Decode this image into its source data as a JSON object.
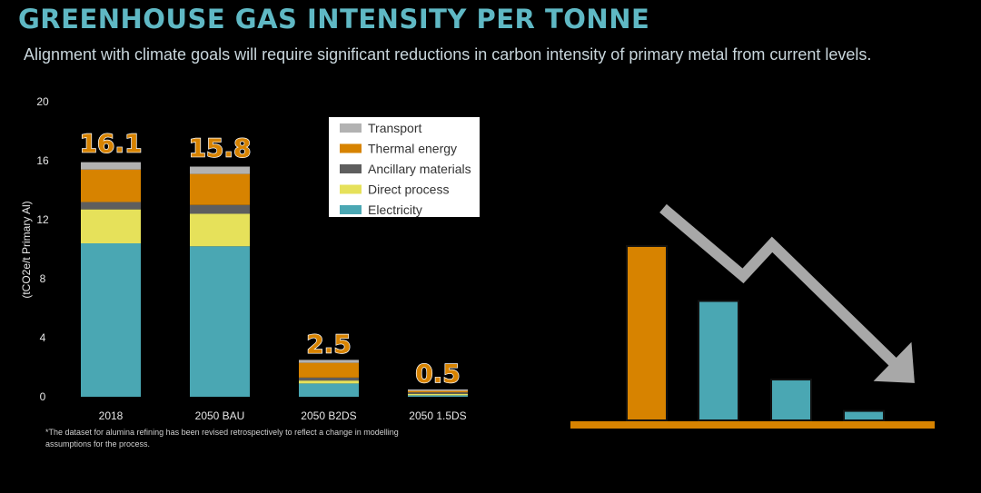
{
  "header": {
    "title": "GREENHOUSE GAS INTENSITY PER TONNE",
    "subtitle": "Alignment with climate goals will require significant reductions in carbon intensity of primary metal from current levels."
  },
  "footnote": "*The dataset for alumina refining has been revised retrospectively to reflect a change in modelling assumptions for the process.",
  "chart_data": [
    {
      "type": "bar",
      "stacked": true,
      "title": "",
      "xlabel": "",
      "ylabel": "(tCO2e/t Primary Al)",
      "ylim": [
        0,
        20
      ],
      "yticks": [
        0,
        4,
        8,
        12,
        16,
        20
      ],
      "categories": [
        "2018",
        "2050 BAU",
        "2050 B2DS",
        "2050 1.5DS"
      ],
      "totals": [
        16.1,
        15.8,
        2.5,
        0.5
      ],
      "total_labels": [
        "16.1",
        "15.8",
        "2.5",
        "0.5"
      ],
      "series": [
        {
          "name": "Electricity",
          "color": "#4aa7b3",
          "values": [
            10.4,
            10.2,
            0.9,
            0.1
          ]
        },
        {
          "name": "Direct process",
          "color": "#e6e15a",
          "values": [
            2.3,
            2.2,
            0.2,
            0.1
          ]
        },
        {
          "name": "Ancillary materials",
          "color": "#5e5e5e",
          "values": [
            0.5,
            0.6,
            0.2,
            0.1
          ]
        },
        {
          "name": "Thermal energy",
          "color": "#d78300",
          "values": [
            2.2,
            2.1,
            1.0,
            0.1
          ]
        },
        {
          "name": "Transport",
          "color": "#b2b2b2",
          "values": [
            0.5,
            0.5,
            0.2,
            0.1
          ]
        }
      ],
      "legend": {
        "position": "top-center",
        "items": [
          "Transport",
          "Thermal energy",
          "Ancillary materials",
          "Direct process",
          "Electricity"
        ]
      },
      "label_color": "#d78300"
    },
    {
      "type": "bar",
      "role": "illustrative decline graphic",
      "categories": [
        "",
        "",
        "",
        ""
      ],
      "values": [
        11.1,
        7.6,
        2.6,
        0.6
      ],
      "colors": [
        "#d78300",
        "#4aa7b3",
        "#4aa7b3",
        "#4aa7b3"
      ],
      "baseline_color": "#d78300",
      "arrow_color": "#a8a8a8",
      "arrow_path": [
        [
          0,
          13.5
        ],
        [
          1.1,
          9.2
        ],
        [
          1.5,
          11.2
        ],
        [
          3.3,
          3.1
        ]
      ],
      "ylim": [
        0,
        20
      ]
    }
  ]
}
